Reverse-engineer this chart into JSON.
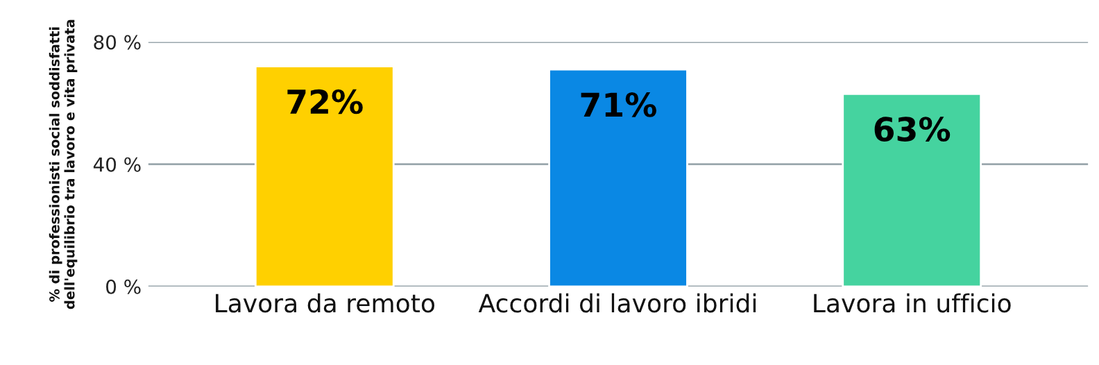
{
  "chart_data": {
    "type": "bar",
    "ylabel": "% di professionisti social soddisfatti\ndell'equilibrio tra lavoro e vita privata",
    "categories": [
      "Lavora da remoto",
      "Accordi di lavoro ibridi",
      "Lavora in ufficio"
    ],
    "values": [
      72,
      71,
      63
    ],
    "value_labels": [
      "72%",
      "71%",
      "63%"
    ],
    "colors": [
      "#ffd000",
      "#0a88e4",
      "#45d39f"
    ],
    "ylim": [
      0,
      80
    ],
    "yticks": [
      {
        "value": 0,
        "label": "0 %"
      },
      {
        "value": 40,
        "label": "40 %"
      },
      {
        "value": 80,
        "label": "80 %"
      }
    ],
    "grid": "y"
  }
}
